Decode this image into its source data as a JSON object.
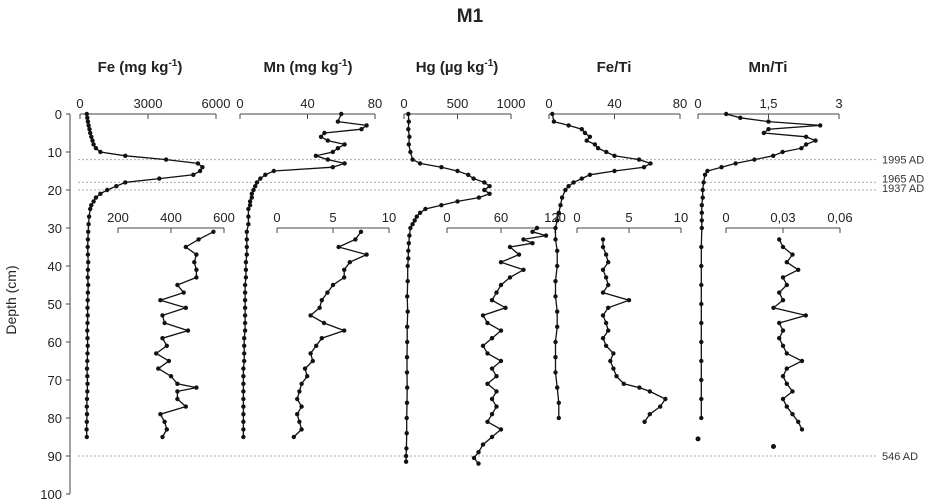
{
  "chart_data": {
    "type": "line",
    "title": "M1",
    "ylabel": "Depth (cm)",
    "ylim": [
      0,
      100
    ],
    "y_axis_reversed": true,
    "yticks": [
      0,
      10,
      20,
      30,
      40,
      50,
      60,
      70,
      80,
      90,
      100
    ],
    "events": [
      {
        "depth": 12,
        "label": "1995 AD"
      },
      {
        "depth": 18,
        "label": "1965 AD"
      },
      {
        "depth": 20,
        "label": "1937 AD"
      },
      {
        "depth": 90,
        "label": "546 AD"
      }
    ],
    "panels": [
      {
        "name": "Fe",
        "title_main": "Fe (mg kg",
        "title_sup": "-1",
        "title_end": ")",
        "upper_axis": {
          "range": [
            0,
            6000
          ],
          "ticks": [
            "0",
            "3000",
            "6000"
          ]
        },
        "lower_axis": {
          "range": [
            100,
            600
          ],
          "ticks": [
            "200",
            "400",
            "600"
          ]
        },
        "upper_series": {
          "depth": [
            0,
            1,
            2,
            3,
            4,
            5,
            6,
            7,
            8,
            9,
            10,
            11,
            12,
            13,
            14,
            15,
            16,
            17,
            18,
            19,
            20,
            21,
            22,
            23,
            24,
            25,
            27,
            29,
            31,
            33,
            35,
            37,
            39,
            41,
            43,
            45,
            47,
            49,
            51,
            53,
            55,
            57,
            59,
            61,
            63,
            65,
            67,
            69,
            71,
            73,
            75,
            77,
            79,
            81,
            83,
            85
          ],
          "values": [
            300,
            320,
            350,
            380,
            420,
            450,
            500,
            550,
            600,
            700,
            900,
            2000,
            3800,
            5200,
            5400,
            5300,
            5000,
            3500,
            2000,
            1600,
            1200,
            900,
            700,
            600,
            500,
            450,
            400,
            380,
            360,
            350,
            340,
            350,
            360,
            350,
            340,
            360,
            350,
            340,
            330,
            340,
            330,
            320,
            330,
            340,
            330,
            320,
            310,
            320,
            330,
            320,
            310,
            300,
            310,
            300,
            290,
            300
          ]
        },
        "lower_series": {
          "depth": [
            31,
            33,
            35,
            37,
            39,
            41,
            43,
            45,
            47,
            49,
            51,
            53,
            55,
            57,
            59,
            61,
            63,
            65,
            67,
            69,
            71,
            72,
            73,
            75,
            77,
            79,
            81,
            83,
            85
          ],
          "values": [
            550,
            480,
            420,
            470,
            460,
            470,
            470,
            380,
            410,
            300,
            420,
            310,
            320,
            430,
            310,
            330,
            280,
            340,
            290,
            350,
            380,
            470,
            380,
            380,
            420,
            300,
            320,
            330,
            310
          ]
        }
      },
      {
        "name": "Mn",
        "title_main": "Mn (mg kg",
        "title_sup": "-1",
        "title_end": ")",
        "upper_axis": {
          "range": [
            0,
            80
          ],
          "ticks": [
            "0",
            "40",
            "80"
          ]
        },
        "lower_axis": {
          "range": [
            0,
            10
          ],
          "ticks": [
            "0",
            "5",
            "10"
          ]
        },
        "upper_series": {
          "depth": [
            0,
            2,
            3,
            4,
            5,
            6,
            7,
            8,
            9,
            10,
            11,
            12,
            13,
            14,
            15,
            16,
            17,
            18,
            19,
            20,
            21,
            22,
            23,
            24,
            25,
            27,
            29,
            31,
            33,
            35,
            37,
            39,
            41,
            43,
            45,
            47,
            49,
            51,
            53,
            55,
            57,
            59,
            61,
            63,
            65,
            67,
            69,
            71,
            73,
            75,
            77,
            79,
            81,
            83,
            85
          ],
          "values": [
            60,
            58,
            75,
            72,
            50,
            48,
            52,
            62,
            58,
            55,
            45,
            52,
            62,
            55,
            20,
            15,
            12,
            10,
            9,
            8,
            7,
            7,
            6,
            6,
            5,
            5,
            5,
            4,
            4,
            4,
            4,
            3.5,
            3.5,
            3.5,
            3,
            3,
            3,
            3,
            3,
            3,
            3,
            2.5,
            2.5,
            2.5,
            2.5,
            2,
            2,
            2,
            2,
            2,
            2,
            2,
            2,
            2,
            2
          ]
        },
        "lower_series": {
          "depth": [
            31,
            33,
            35,
            37,
            39,
            41,
            43,
            45,
            47,
            49,
            51,
            53,
            55,
            57,
            59,
            61,
            63,
            65,
            67,
            69,
            71,
            73,
            75,
            77,
            79,
            81,
            83,
            85
          ],
          "values": [
            7.5,
            7,
            5.5,
            8,
            6.5,
            6,
            6,
            5,
            4.5,
            4,
            3.8,
            3,
            4.2,
            6,
            4,
            3.5,
            3,
            3.2,
            2.5,
            2.7,
            2.2,
            2.0,
            1.8,
            2.2,
            1.8,
            2.0,
            2.2,
            1.5
          ]
        }
      },
      {
        "name": "Hg",
        "title_main": "Hg (µg kg",
        "title_sup": "-1",
        "title_end": ")",
        "upper_axis": {
          "range": [
            0,
            1000
          ],
          "ticks": [
            "0",
            "500",
            "1000"
          ]
        },
        "lower_axis": {
          "range": [
            0,
            120
          ],
          "ticks": [
            "0",
            "60",
            "120"
          ]
        },
        "upper_series": {
          "depth": [
            0,
            2,
            4,
            6,
            8,
            10,
            12,
            13,
            14,
            15,
            16,
            17,
            18,
            19,
            20,
            21,
            22,
            23,
            24,
            25,
            26,
            27,
            28,
            29,
            30,
            32,
            34,
            36,
            38,
            40,
            44,
            48,
            52,
            56,
            60,
            64,
            68,
            72,
            76,
            80,
            84,
            88,
            90,
            91.5
          ],
          "values": [
            40,
            45,
            40,
            50,
            45,
            60,
            80,
            150,
            350,
            500,
            600,
            650,
            750,
            800,
            750,
            800,
            700,
            500,
            350,
            200,
            150,
            120,
            100,
            80,
            60,
            50,
            45,
            40,
            40,
            35,
            35,
            30,
            35,
            30,
            30,
            28,
            28,
            30,
            28,
            25,
            25,
            22,
            20,
            20
          ]
        },
        "lower_series": {
          "depth": [
            30,
            31,
            32,
            33,
            34,
            35,
            37,
            39,
            41,
            43,
            45,
            47,
            49,
            51,
            53,
            55,
            57,
            59,
            61,
            63,
            65,
            67,
            69,
            71,
            73,
            75,
            77,
            79,
            81,
            83,
            85,
            87,
            89,
            90.5,
            92
          ],
          "values": [
            100,
            95,
            110,
            85,
            95,
            70,
            80,
            60,
            85,
            70,
            60,
            55,
            50,
            65,
            40,
            45,
            60,
            50,
            40,
            45,
            60,
            50,
            55,
            45,
            55,
            50,
            55,
            50,
            45,
            60,
            50,
            40,
            35,
            30,
            35
          ]
        }
      },
      {
        "name": "Fe/Ti",
        "title_main": "Fe/Ti",
        "title_sup": "",
        "title_end": "",
        "upper_axis": {
          "range": [
            0,
            80
          ],
          "ticks": [
            "0",
            "40",
            "80"
          ]
        },
        "lower_axis": {
          "range": [
            0,
            10
          ],
          "ticks": [
            "0",
            "5",
            "10"
          ]
        },
        "upper_series": {
          "depth": [
            0,
            2,
            3,
            4,
            5,
            6,
            7,
            8,
            9,
            10,
            11,
            12,
            13,
            14,
            15,
            16,
            17,
            18,
            19,
            20,
            22,
            24,
            26,
            28,
            30,
            33,
            36,
            40,
            44,
            48,
            52,
            56,
            60,
            64,
            68,
            72,
            76,
            80
          ],
          "values": [
            2,
            3,
            12,
            20,
            22,
            25,
            23,
            28,
            30,
            35,
            40,
            55,
            62,
            58,
            40,
            25,
            20,
            15,
            12,
            10,
            8,
            7,
            6,
            5,
            4,
            4,
            5,
            5,
            4,
            4,
            5,
            5,
            4,
            4,
            4,
            5,
            6,
            6
          ]
        },
        "lower_series": {
          "depth": [
            33,
            35,
            37,
            39,
            41,
            43,
            45,
            47,
            49,
            51,
            53,
            55,
            57,
            59,
            61,
            63,
            65,
            67,
            69,
            71,
            72,
            73,
            75,
            77,
            79,
            81
          ],
          "values": [
            2.5,
            2.5,
            2.8,
            3,
            2.5,
            2.8,
            3,
            2.5,
            5,
            3,
            2.5,
            2.8,
            3,
            2.5,
            2.8,
            3.5,
            3.2,
            3.5,
            3.8,
            4.5,
            6,
            7,
            8.5,
            8,
            7,
            6.5
          ]
        }
      },
      {
        "name": "Mn/Ti",
        "title_main": "Mn/Ti",
        "title_sup": "",
        "title_end": "",
        "upper_axis": {
          "range": [
            0,
            3
          ],
          "ticks": [
            "0",
            "1,5",
            "3"
          ]
        },
        "lower_axis": {
          "range": [
            0,
            0.06
          ],
          "ticks": [
            "0",
            "0,03",
            "0,06"
          ]
        },
        "upper_series": {
          "depth": [
            0,
            1,
            2,
            3,
            4,
            5,
            6,
            7,
            8,
            9,
            10,
            11,
            12,
            13,
            14,
            15,
            16,
            18,
            20,
            22,
            24,
            26,
            28,
            30,
            35,
            40,
            45,
            50,
            55,
            60,
            65,
            70,
            75,
            80
          ],
          "values": [
            0.6,
            0.9,
            1.5,
            2.6,
            1.5,
            1.4,
            2.3,
            2.5,
            2.3,
            2.2,
            1.8,
            1.6,
            1.2,
            0.8,
            0.5,
            0.2,
            0.15,
            0.12,
            0.1,
            0.1,
            0.08,
            0.08,
            0.08,
            0.08,
            0.07,
            0.07,
            0.07,
            0.07,
            0.07,
            0.07,
            0.07,
            0.07,
            0.07,
            0.07
          ]
        },
        "lower_series": {
          "depth": [
            33,
            35,
            37,
            39,
            41,
            43,
            45,
            47,
            49,
            51,
            53,
            55,
            57,
            59,
            61,
            63,
            65,
            67,
            69,
            71,
            73,
            75,
            77,
            79,
            81,
            83
          ],
          "values": [
            0.028,
            0.03,
            0.035,
            0.032,
            0.038,
            0.03,
            0.032,
            0.028,
            0.03,
            0.025,
            0.042,
            0.028,
            0.03,
            0.028,
            0.03,
            0.032,
            0.04,
            0.032,
            0.03,
            0.032,
            0.035,
            0.03,
            0.032,
            0.035,
            0.038,
            0.04
          ]
        },
        "extra_points": [
          {
            "depth": 85.5,
            "value": 0,
            "axis": "upper"
          },
          {
            "depth": 87.5,
            "value": 0.025,
            "axis": "lower"
          }
        ]
      }
    ]
  }
}
